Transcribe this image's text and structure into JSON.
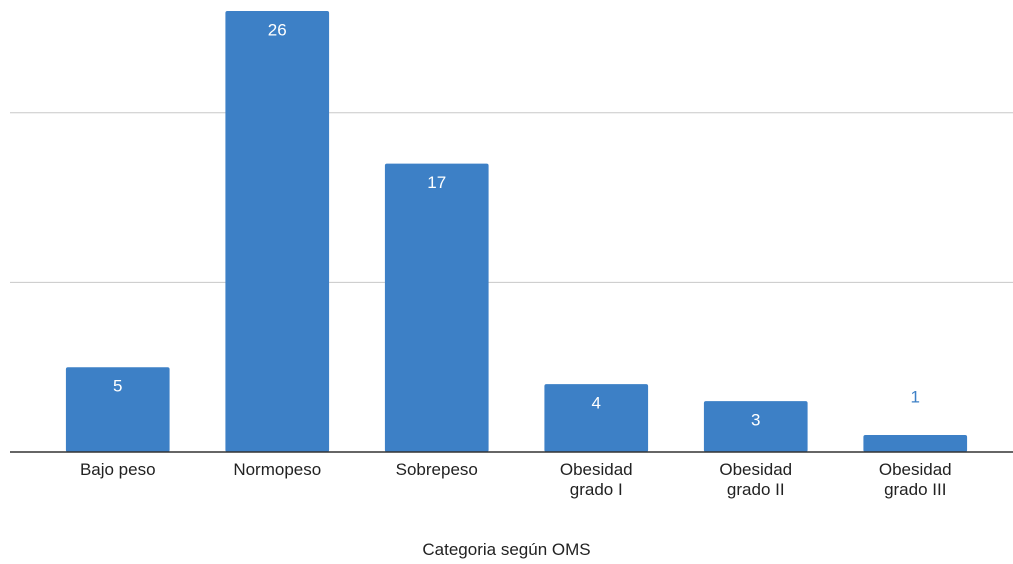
{
  "chart_data": {
    "type": "bar",
    "x_label": "Categoria según OMS",
    "categories": [
      "Bajo peso",
      "Normopeso",
      "Sobrepeso",
      "Obesidad grado I",
      "Obesidad grado II",
      "Obesidad grado III"
    ],
    "values": [
      5,
      26,
      17,
      4,
      3,
      1
    ],
    "color": "#3d80c6",
    "ylim": [
      0,
      26
    ],
    "yticks": [
      0,
      10,
      20
    ],
    "grid": true
  }
}
